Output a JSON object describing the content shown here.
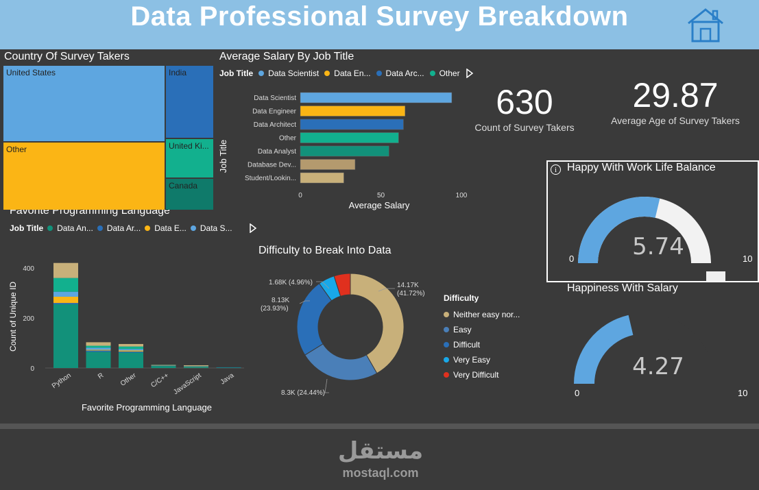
{
  "header": {
    "title": "Data Professional Survey Breakdown",
    "home_icon": "home-icon",
    "background": "#8cc0e4"
  },
  "treemap": {
    "title": "Country Of Survey Takers",
    "cells": [
      {
        "label": "United States",
        "color": "#5ea6e0"
      },
      {
        "label": "Other",
        "color": "#fbb515"
      },
      {
        "label": "India",
        "color": "#2a6fb8"
      },
      {
        "label": "United Ki...",
        "color": "#12b08e"
      },
      {
        "label": "Canada",
        "color": "#0f7a6a"
      }
    ]
  },
  "salary_chart": {
    "title": "Average Salary By Job Title",
    "legend_title": "Job Title",
    "legend_items": [
      {
        "label": "Data Scientist",
        "color": "#5ea6e0"
      },
      {
        "label": "Data En...",
        "color": "#fbb515"
      },
      {
        "label": "Data Arc...",
        "color": "#2a6fb8"
      },
      {
        "label": "Other",
        "color": "#12b08e"
      }
    ],
    "xlabel": "Average Salary",
    "ylabel": "Job Title",
    "xticks": [
      "0",
      "50",
      "100"
    ]
  },
  "language_chart": {
    "title": "Favorite Programming Language",
    "legend_title": "Job Title",
    "legend_items": [
      {
        "label": "Data An...",
        "color": "#12917a"
      },
      {
        "label": "Data Ar...",
        "color": "#2a6fb8"
      },
      {
        "label": "Data E...",
        "color": "#fbb515"
      },
      {
        "label": "Data S...",
        "color": "#5ea6e0"
      }
    ],
    "xlabel": "Favorite Programming Language",
    "ylabel": "Count of Unique ID",
    "yticks": [
      "0",
      "200",
      "400"
    ]
  },
  "donut": {
    "title": "Difficulty to Break Into Data",
    "legend_title": "Difficulty",
    "legend_items": [
      {
        "label": "Neither easy nor...",
        "color": "#c8b07a"
      },
      {
        "label": "Easy",
        "color": "#4a7fb8"
      },
      {
        "label": "Difficult",
        "color": "#2a6fb8"
      },
      {
        "label": "Very Easy",
        "color": "#19a8e8"
      },
      {
        "label": "Very Difficult",
        "color": "#e0301e"
      }
    ],
    "labels": [
      "14.17K",
      "(41.72%)",
      "8.3K (24.44%)",
      "8.13K",
      "(23.93%)",
      "1.68K (4.96%)"
    ]
  },
  "kpis": {
    "count_value": "630",
    "count_label": "Count of Survey Takers",
    "age_value": "29.87",
    "age_label": "Average Age of Survey Takers"
  },
  "gauge_worklife": {
    "title": "Happy With Work Life Balance",
    "value_text": "5.74",
    "min": "0",
    "max": "10",
    "value": 5.74,
    "info_icon": "info-icon"
  },
  "gauge_salary": {
    "title": "Happiness With Salary",
    "value_text": "4.27",
    "min": "0",
    "max": "10",
    "value": 4.27
  },
  "watermark": {
    "arabic": "مستقل",
    "latin": "mostaql.com"
  },
  "chart_data": [
    {
      "type": "bar",
      "title": "Average Salary By Job Title",
      "orientation": "horizontal",
      "categories": [
        "Data Scientist",
        "Data Engineer",
        "Data Architect",
        "Other",
        "Data Analyst",
        "Database Dev...",
        "Student/Lookin..."
      ],
      "values": [
        94,
        65,
        64,
        61,
        55,
        34,
        27
      ],
      "colors": [
        "#5ea6e0",
        "#fbb515",
        "#2a6fb8",
        "#12b08e",
        "#12917a",
        "#b49a6e",
        "#c8b07a"
      ],
      "xlabel": "Average Salary",
      "ylabel": "Job Title",
      "xlim": [
        0,
        100
      ]
    },
    {
      "type": "bar",
      "stacked": true,
      "title": "Favorite Programming Language",
      "categories": [
        "Python",
        "R",
        "Other",
        "C/C++",
        "JavaScript",
        "Java"
      ],
      "series": [
        {
          "name": "Data An...",
          "color": "#12917a",
          "values": [
            255,
            65,
            62,
            8,
            4,
            2
          ]
        },
        {
          "name": "Data Ar...",
          "color": "#2a6fb8",
          "values": [
            5,
            5,
            4,
            1,
            1,
            1
          ]
        },
        {
          "name": "Data E...",
          "color": "#fbb515",
          "values": [
            25,
            3,
            4,
            1,
            1,
            0
          ]
        },
        {
          "name": "Data S...",
          "color": "#5ea6e0",
          "values": [
            20,
            8,
            6,
            1,
            1,
            0
          ]
        },
        {
          "name": "",
          "color": "#12b08e",
          "values": [
            55,
            8,
            10,
            1,
            1,
            0
          ]
        },
        {
          "name": "",
          "color": "#c8b07a",
          "values": [
            60,
            14,
            10,
            1,
            3,
            0
          ]
        }
      ],
      "xlabel": "Favorite Programming Language",
      "ylabel": "Count of Unique ID",
      "ylim": [
        0,
        420
      ]
    },
    {
      "type": "pie",
      "donut": true,
      "title": "Difficulty to Break Into Data",
      "labels": [
        "Neither easy nor...",
        "Easy",
        "Difficult",
        "Very Easy",
        "Very Difficult"
      ],
      "values": [
        14.17,
        8.3,
        8.13,
        1.68,
        1.68
      ],
      "percents": [
        41.72,
        24.44,
        23.93,
        4.96,
        4.95
      ],
      "colors": [
        "#c8b07a",
        "#4a7fb8",
        "#2a6fb8",
        "#19a8e8",
        "#e0301e"
      ]
    }
  ]
}
